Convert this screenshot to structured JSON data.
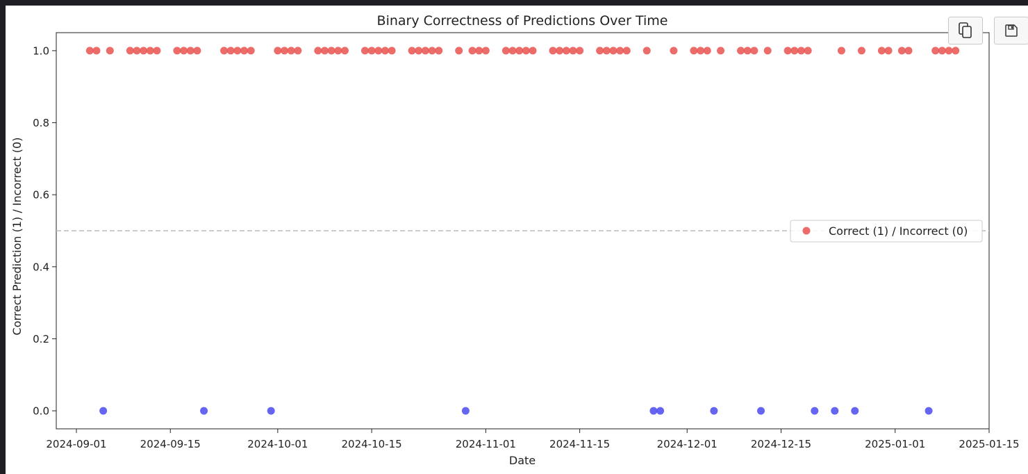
{
  "toolbar": {
    "copy_icon": "copy-icon",
    "save_icon": "floppy-disk-icon"
  },
  "chart_data": {
    "type": "scatter",
    "title": "Binary Correctness of Predictions Over Time",
    "xlabel": "Date",
    "ylabel": "Correct Prediction (1) / Incorrect (0)",
    "x_type": "date",
    "xlim": [
      "2024-08-29",
      "2025-01-15"
    ],
    "ylim": [
      -0.05,
      1.05
    ],
    "x_ticks": [
      "2024-09-01",
      "2024-09-15",
      "2024-10-01",
      "2024-10-15",
      "2024-11-01",
      "2024-11-15",
      "2024-12-01",
      "2024-12-15",
      "2025-01-01",
      "2025-01-15"
    ],
    "y_ticks": [
      0.0,
      0.2,
      0.4,
      0.6,
      0.8,
      1.0
    ],
    "y_tick_labels": [
      "0.0",
      "0.2",
      "0.4",
      "0.6",
      "0.8",
      "1.0"
    ],
    "reference_line": {
      "y": 0.5,
      "style": "dashed",
      "color": "#bbbbbb"
    },
    "grid": false,
    "legend": {
      "position": "center-right",
      "entries": [
        "Correct (1) / Incorrect (0)"
      ]
    },
    "colors": {
      "correct": "#e8524d",
      "incorrect": "#4a4af0"
    },
    "points": [
      {
        "x": "2024-09-03",
        "y": 1
      },
      {
        "x": "2024-09-04",
        "y": 1
      },
      {
        "x": "2024-09-05",
        "y": 0
      },
      {
        "x": "2024-09-06",
        "y": 1
      },
      {
        "x": "2024-09-09",
        "y": 1
      },
      {
        "x": "2024-09-10",
        "y": 1
      },
      {
        "x": "2024-09-11",
        "y": 1
      },
      {
        "x": "2024-09-12",
        "y": 1
      },
      {
        "x": "2024-09-13",
        "y": 1
      },
      {
        "x": "2024-09-16",
        "y": 1
      },
      {
        "x": "2024-09-17",
        "y": 1
      },
      {
        "x": "2024-09-18",
        "y": 1
      },
      {
        "x": "2024-09-19",
        "y": 1
      },
      {
        "x": "2024-09-20",
        "y": 0
      },
      {
        "x": "2024-09-23",
        "y": 1
      },
      {
        "x": "2024-09-24",
        "y": 1
      },
      {
        "x": "2024-09-25",
        "y": 1
      },
      {
        "x": "2024-09-26",
        "y": 1
      },
      {
        "x": "2024-09-27",
        "y": 1
      },
      {
        "x": "2024-09-30",
        "y": 0
      },
      {
        "x": "2024-10-01",
        "y": 1
      },
      {
        "x": "2024-10-02",
        "y": 1
      },
      {
        "x": "2024-10-03",
        "y": 1
      },
      {
        "x": "2024-10-04",
        "y": 1
      },
      {
        "x": "2024-10-07",
        "y": 1
      },
      {
        "x": "2024-10-08",
        "y": 1
      },
      {
        "x": "2024-10-09",
        "y": 1
      },
      {
        "x": "2024-10-10",
        "y": 1
      },
      {
        "x": "2024-10-11",
        "y": 1
      },
      {
        "x": "2024-10-14",
        "y": 1
      },
      {
        "x": "2024-10-15",
        "y": 1
      },
      {
        "x": "2024-10-16",
        "y": 1
      },
      {
        "x": "2024-10-17",
        "y": 1
      },
      {
        "x": "2024-10-18",
        "y": 1
      },
      {
        "x": "2024-10-21",
        "y": 1
      },
      {
        "x": "2024-10-22",
        "y": 1
      },
      {
        "x": "2024-10-23",
        "y": 1
      },
      {
        "x": "2024-10-24",
        "y": 1
      },
      {
        "x": "2024-10-25",
        "y": 1
      },
      {
        "x": "2024-10-28",
        "y": 1
      },
      {
        "x": "2024-10-29",
        "y": 0
      },
      {
        "x": "2024-10-30",
        "y": 1
      },
      {
        "x": "2024-10-31",
        "y": 1
      },
      {
        "x": "2024-11-01",
        "y": 1
      },
      {
        "x": "2024-11-04",
        "y": 1
      },
      {
        "x": "2024-11-05",
        "y": 1
      },
      {
        "x": "2024-11-06",
        "y": 1
      },
      {
        "x": "2024-11-07",
        "y": 1
      },
      {
        "x": "2024-11-08",
        "y": 1
      },
      {
        "x": "2024-11-11",
        "y": 1
      },
      {
        "x": "2024-11-12",
        "y": 1
      },
      {
        "x": "2024-11-13",
        "y": 1
      },
      {
        "x": "2024-11-14",
        "y": 1
      },
      {
        "x": "2024-11-15",
        "y": 1
      },
      {
        "x": "2024-11-18",
        "y": 1
      },
      {
        "x": "2024-11-19",
        "y": 1
      },
      {
        "x": "2024-11-20",
        "y": 1
      },
      {
        "x": "2024-11-21",
        "y": 1
      },
      {
        "x": "2024-11-22",
        "y": 1
      },
      {
        "x": "2024-11-25",
        "y": 1
      },
      {
        "x": "2024-11-26",
        "y": 0
      },
      {
        "x": "2024-11-27",
        "y": 0
      },
      {
        "x": "2024-11-29",
        "y": 1
      },
      {
        "x": "2024-12-02",
        "y": 1
      },
      {
        "x": "2024-12-03",
        "y": 1
      },
      {
        "x": "2024-12-04",
        "y": 1
      },
      {
        "x": "2024-12-05",
        "y": 0
      },
      {
        "x": "2024-12-06",
        "y": 1
      },
      {
        "x": "2024-12-09",
        "y": 1
      },
      {
        "x": "2024-12-10",
        "y": 1
      },
      {
        "x": "2024-12-11",
        "y": 1
      },
      {
        "x": "2024-12-12",
        "y": 0
      },
      {
        "x": "2024-12-13",
        "y": 1
      },
      {
        "x": "2024-12-16",
        "y": 1
      },
      {
        "x": "2024-12-17",
        "y": 1
      },
      {
        "x": "2024-12-18",
        "y": 1
      },
      {
        "x": "2024-12-19",
        "y": 1
      },
      {
        "x": "2024-12-20",
        "y": 0
      },
      {
        "x": "2024-12-23",
        "y": 0
      },
      {
        "x": "2024-12-24",
        "y": 1
      },
      {
        "x": "2024-12-26",
        "y": 0
      },
      {
        "x": "2024-12-27",
        "y": 1
      },
      {
        "x": "2024-12-30",
        "y": 1
      },
      {
        "x": "2024-12-31",
        "y": 1
      },
      {
        "x": "2025-01-02",
        "y": 1
      },
      {
        "x": "2025-01-03",
        "y": 1
      },
      {
        "x": "2025-01-06",
        "y": 0
      },
      {
        "x": "2025-01-07",
        "y": 1
      },
      {
        "x": "2025-01-08",
        "y": 1
      },
      {
        "x": "2025-01-09",
        "y": 1
      },
      {
        "x": "2025-01-10",
        "y": 1
      }
    ]
  }
}
